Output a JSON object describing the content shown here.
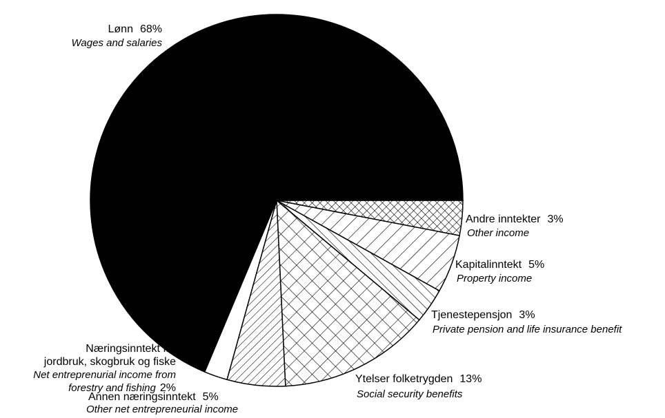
{
  "chart_data": {
    "type": "pie",
    "categories": [
      [
        "Andre inntekter"
      ],
      [
        "Kapitalinntekt"
      ],
      [
        "Tjenestepensjon"
      ],
      [
        "Ytelser folketrygden"
      ],
      [
        "Annen næringsinntekt"
      ],
      [
        "Næringsinntekt fra",
        "jordbruk, skogbruk og fiske"
      ],
      [
        "Lønn"
      ]
    ],
    "sublabels": [
      [
        "Other income"
      ],
      [
        "Property income"
      ],
      [
        "Private pension and life insurance benefit"
      ],
      [
        "Social security benefits"
      ],
      [
        "Other net entrepreneurial income"
      ],
      [
        "Net entreprenurial income from",
        "forestry and fishing"
      ],
      [
        "Wages and salaries"
      ]
    ],
    "values": [
      3,
      5,
      3,
      13,
      5,
      2,
      68
    ],
    "value_labels": [
      "3%",
      "5%",
      "3%",
      "13%",
      "5%",
      "2%",
      "68%"
    ],
    "patterns": [
      "fine-crosshatch",
      "diagonal-up",
      "diagonal-down",
      "crosshatch",
      "diagonal-up-dense",
      "white",
      "black"
    ]
  }
}
